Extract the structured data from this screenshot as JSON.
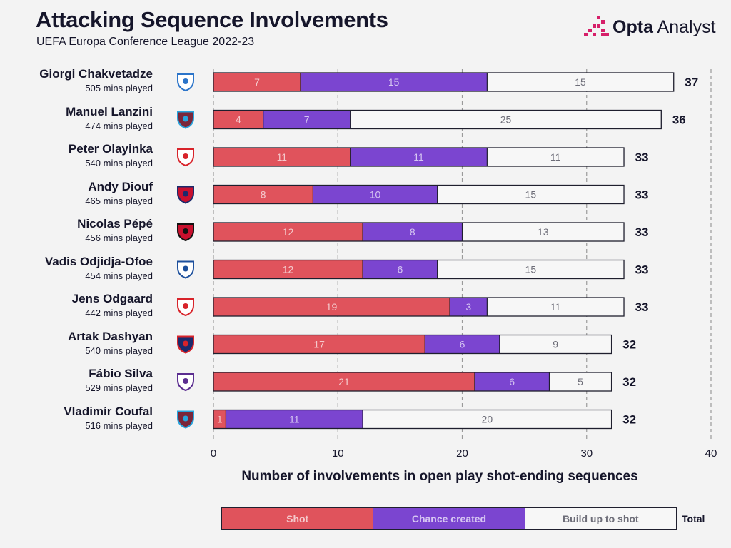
{
  "header": {
    "title": "Attacking Sequence Involvements",
    "subtitle": "UEFA Europa Conference League 2022-23"
  },
  "brand": {
    "name_bold": "Opta",
    "name_regular": "Analyst"
  },
  "colors": {
    "shot": "#e0535c",
    "chance_created": "#7b45d0",
    "build_up": "#f7f7f7",
    "grid": "#9a9a9a",
    "outline": "#1f1f2e",
    "text_dark": "#15152a",
    "segment_label_light": "#f4c9cc",
    "segment_label_mid": "#d6c6f2",
    "segment_label_grey": "#6d6d78"
  },
  "chart_data": {
    "type": "bar",
    "orientation": "horizontal",
    "stacked": true,
    "title": "Attacking Sequence Involvements",
    "subtitle": "UEFA Europa Conference League 2022-23",
    "xlabel": "Number of involvements in open play shot-ending sequences",
    "ylabel": "",
    "xlim": [
      0,
      40
    ],
    "xticks": [
      0,
      10,
      20,
      30,
      40
    ],
    "grid": true,
    "legend_position": "bottom",
    "series_names": [
      "Shot",
      "Chance created",
      "Build up to shot"
    ],
    "total_label": "Total",
    "players": [
      {
        "name": "Giorgi Chakvetadze",
        "mins": "505 mins played",
        "badge": "slovan-bratislava-badge",
        "shot": 7,
        "chance_created": 15,
        "build_up": 15,
        "total": 37
      },
      {
        "name": "Manuel Lanzini",
        "mins": "474 mins played",
        "badge": "west-ham-badge",
        "shot": 4,
        "chance_created": 7,
        "build_up": 25,
        "total": 36
      },
      {
        "name": "Peter Olayinka",
        "mins": "540 mins played",
        "badge": "slavia-praha-badge",
        "shot": 11,
        "chance_created": 11,
        "build_up": 11,
        "total": 33
      },
      {
        "name": "Andy Diouf",
        "mins": "465 mins played",
        "badge": "basel-badge",
        "shot": 8,
        "chance_created": 10,
        "build_up": 15,
        "total": 33
      },
      {
        "name": "Nicolas Pépé",
        "mins": "456 mins played",
        "badge": "nice-badge",
        "shot": 12,
        "chance_created": 8,
        "build_up": 13,
        "total": 33
      },
      {
        "name": "Vadis Odjidja-Ofoe",
        "mins": "454 mins played",
        "badge": "gent-badge",
        "shot": 12,
        "chance_created": 6,
        "build_up": 15,
        "total": 33
      },
      {
        "name": "Jens Odgaard",
        "mins": "442 mins played",
        "badge": "az-alkmaar-badge",
        "shot": 19,
        "chance_created": 3,
        "build_up": 11,
        "total": 33
      },
      {
        "name": "Artak Dashyan",
        "mins": "540 mins played",
        "badge": "pyunik-badge",
        "shot": 17,
        "chance_created": 6,
        "build_up": 9,
        "total": 32
      },
      {
        "name": "Fábio Silva",
        "mins": "529 mins played",
        "badge": "anderlecht-badge",
        "shot": 21,
        "chance_created": 6,
        "build_up": 5,
        "total": 32
      },
      {
        "name": "Vladimír Coufal",
        "mins": "516 mins played",
        "badge": "west-ham-badge",
        "shot": 1,
        "chance_created": 11,
        "build_up": 20,
        "total": 32
      }
    ]
  }
}
